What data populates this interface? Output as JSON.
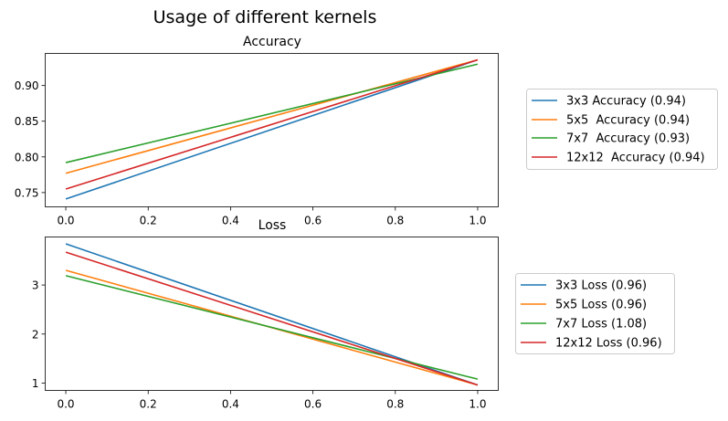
{
  "figure": {
    "title": "Usage of different kernels"
  },
  "chart_data": [
    {
      "type": "line",
      "title": "Accuracy",
      "xlabel": "",
      "ylabel": "",
      "xlim": [
        -0.05,
        1.05
      ],
      "ylim": [
        0.73,
        0.945
      ],
      "xticks": [
        0.0,
        0.2,
        0.4,
        0.6,
        0.8,
        1.0
      ],
      "xtick_labels": [
        "0.0",
        "0.2",
        "0.4",
        "0.6",
        "0.8",
        "1.0"
      ],
      "yticks": [
        0.75,
        0.8,
        0.85,
        0.9
      ],
      "ytick_labels": [
        "0.75",
        "0.80",
        "0.85",
        "0.90"
      ],
      "grid": false,
      "legend": "outside-right",
      "series": [
        {
          "name": "3x3 Accuracy (0.94)",
          "color": "#1f77b4",
          "x": [
            0,
            1
          ],
          "y": [
            0.741,
            0.936
          ]
        },
        {
          "name": "5x5  Accuracy (0.94)",
          "color": "#ff7f0e",
          "x": [
            0,
            1
          ],
          "y": [
            0.777,
            0.936
          ]
        },
        {
          "name": "7x7  Accuracy (0.93)",
          "color": "#2ca02c",
          "x": [
            0,
            1
          ],
          "y": [
            0.792,
            0.93
          ]
        },
        {
          "name": "12x12  Accuracy (0.94)",
          "color": "#d62728",
          "x": [
            0,
            1
          ],
          "y": [
            0.755,
            0.936
          ]
        }
      ]
    },
    {
      "type": "line",
      "title": "Loss",
      "xlabel": "",
      "ylabel": "",
      "xlim": [
        -0.05,
        1.05
      ],
      "ylim": [
        0.85,
        3.98
      ],
      "xticks": [
        0.0,
        0.2,
        0.4,
        0.6,
        0.8,
        1.0
      ],
      "xtick_labels": [
        "0.0",
        "0.2",
        "0.4",
        "0.6",
        "0.8",
        "1.0"
      ],
      "yticks": [
        1,
        2,
        3
      ],
      "ytick_labels": [
        "1",
        "2",
        "3"
      ],
      "grid": false,
      "legend": "outside-right",
      "series": [
        {
          "name": "3x3 Loss (0.96)",
          "color": "#1f77b4",
          "x": [
            0,
            1
          ],
          "y": [
            3.84,
            0.96
          ]
        },
        {
          "name": "5x5 Loss (0.96)",
          "color": "#ff7f0e",
          "x": [
            0,
            1
          ],
          "y": [
            3.3,
            0.96
          ]
        },
        {
          "name": "7x7 Loss (1.08)",
          "color": "#2ca02c",
          "x": [
            0,
            1
          ],
          "y": [
            3.19,
            1.08
          ]
        },
        {
          "name": "12x12 Loss (0.96)",
          "color": "#d62728",
          "x": [
            0,
            1
          ],
          "y": [
            3.67,
            0.96
          ]
        }
      ]
    }
  ]
}
